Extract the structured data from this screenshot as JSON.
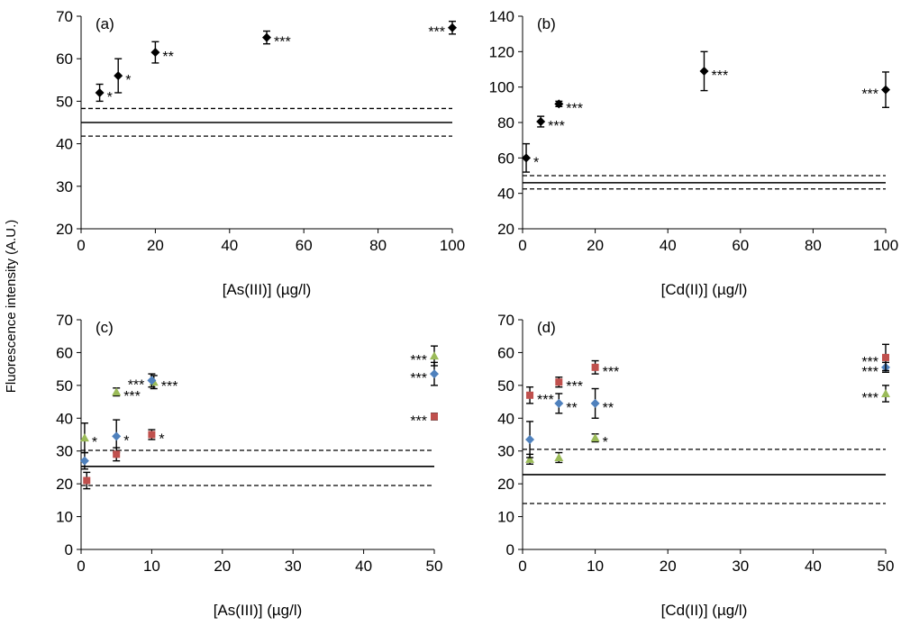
{
  "figure": {
    "ylabel": "Fluorescence intensity (A.U.)"
  },
  "chart_data": [
    {
      "id": "a",
      "type": "scatter",
      "panel_label": "(a)",
      "xlabel": "[As(III)] (µg/l)",
      "xlim": [
        0,
        100
      ],
      "xticks": [
        0,
        20,
        40,
        60,
        80,
        100
      ],
      "ylim": [
        20,
        70
      ],
      "yticks": [
        20,
        30,
        40,
        50,
        60,
        70
      ],
      "reference_lines": {
        "mean": 45,
        "lower": 41.8,
        "upper": 48.3
      },
      "series": [
        {
          "name": "series-1",
          "color": "#000000",
          "marker": "diamond",
          "points": [
            {
              "x": 5,
              "y": 52,
              "err": 2,
              "sig": "*",
              "sig_side": "right"
            },
            {
              "x": 10,
              "y": 56,
              "err": 4,
              "sig": "*",
              "sig_side": "right"
            },
            {
              "x": 20,
              "y": 61.5,
              "err": 2.5,
              "sig": "**",
              "sig_side": "right"
            },
            {
              "x": 50,
              "y": 65,
              "err": 1.5,
              "sig": "***",
              "sig_side": "right"
            },
            {
              "x": 100,
              "y": 67.3,
              "err": 1.5,
              "sig": "***",
              "sig_side": "left"
            }
          ]
        }
      ]
    },
    {
      "id": "b",
      "type": "scatter",
      "panel_label": "(b)",
      "xlabel": "[Cd(II)] (µg/l)",
      "xlim": [
        0,
        100
      ],
      "xticks": [
        0,
        20,
        40,
        60,
        80,
        100
      ],
      "ylim": [
        20,
        140
      ],
      "yticks": [
        20,
        40,
        60,
        80,
        100,
        120,
        140
      ],
      "reference_lines": {
        "mean": 46,
        "lower": 42.5,
        "upper": 50
      },
      "series": [
        {
          "name": "series-1",
          "color": "#000000",
          "marker": "diamond",
          "points": [
            {
              "x": 1,
              "y": 60,
              "err": 8,
              "sig": "*",
              "sig_side": "right"
            },
            {
              "x": 5,
              "y": 80.5,
              "err": 3,
              "sig": "***",
              "sig_side": "right"
            },
            {
              "x": 10,
              "y": 90.5,
              "err": 1.5,
              "sig": "***",
              "sig_side": "right"
            },
            {
              "x": 50,
              "y": 109,
              "err": 11,
              "sig": "***",
              "sig_side": "right"
            },
            {
              "x": 100,
              "y": 98.5,
              "err": 10,
              "sig": "***",
              "sig_side": "left"
            }
          ]
        }
      ]
    },
    {
      "id": "c",
      "type": "scatter",
      "panel_label": "(c)",
      "xlabel": "[As(III)] (µg/l)",
      "xlim": [
        0,
        50
      ],
      "xticks": [
        0,
        10,
        20,
        30,
        40,
        50
      ],
      "ylim": [
        0,
        70
      ],
      "yticks": [
        0,
        10,
        20,
        30,
        40,
        50,
        60,
        70
      ],
      "reference_lines": {
        "mean": 25.3,
        "lower": 19.5,
        "upper": 30.2
      },
      "series": [
        {
          "name": "green",
          "color": "#9BBB59",
          "marker": "triangle",
          "points": [
            {
              "x": 0.5,
              "y": 34,
              "err": 4.5,
              "sig": "*",
              "sig_side": "right"
            },
            {
              "x": 5,
              "y": 48,
              "err": 1.2,
              "sig": "***",
              "sig_side": "right"
            },
            {
              "x": 10.3,
              "y": 51,
              "err": 2,
              "sig": "***",
              "sig_side": "right"
            },
            {
              "x": 50,
              "y": 59,
              "err": 3,
              "sig": "***",
              "sig_side": "left"
            }
          ]
        },
        {
          "name": "blue",
          "color": "#4F81BD",
          "marker": "diamond",
          "points": [
            {
              "x": 0.5,
              "y": 27,
              "err": 2.5,
              "sig": "",
              "sig_side": "right"
            },
            {
              "x": 5,
              "y": 34.5,
              "err": 5,
              "sig": "*",
              "sig_side": "right"
            },
            {
              "x": 10,
              "y": 51.5,
              "err": 2,
              "sig": "***",
              "sig_side": "left"
            },
            {
              "x": 50,
              "y": 53.5,
              "err": 3.5,
              "sig": "***",
              "sig_side": "left"
            }
          ]
        },
        {
          "name": "red",
          "color": "#C0504D",
          "marker": "square",
          "points": [
            {
              "x": 0.8,
              "y": 21,
              "err": 2.5,
              "sig": "",
              "sig_side": "right"
            },
            {
              "x": 5,
              "y": 29,
              "err": 2,
              "sig": "",
              "sig_side": "right"
            },
            {
              "x": 10,
              "y": 35,
              "err": 1.5,
              "sig": "*",
              "sig_side": "right"
            },
            {
              "x": 50,
              "y": 40.5,
              "err": 1,
              "sig": "***",
              "sig_side": "left"
            }
          ]
        }
      ]
    },
    {
      "id": "d",
      "type": "scatter",
      "panel_label": "(d)",
      "xlabel": "[Cd(II)] (µg/l)",
      "xlim": [
        0,
        50
      ],
      "xticks": [
        0,
        10,
        20,
        30,
        40,
        50
      ],
      "ylim": [
        0,
        70
      ],
      "yticks": [
        0,
        10,
        20,
        30,
        40,
        50,
        60,
        70
      ],
      "reference_lines": {
        "mean": 22.8,
        "lower": 14,
        "upper": 30.5
      },
      "series": [
        {
          "name": "green",
          "color": "#9BBB59",
          "marker": "triangle",
          "points": [
            {
              "x": 1,
              "y": 27.5,
              "err": 1.5,
              "sig": "",
              "sig_side": "right"
            },
            {
              "x": 5,
              "y": 28,
              "err": 1.5,
              "sig": "",
              "sig_side": "right"
            },
            {
              "x": 10,
              "y": 34,
              "err": 1.2,
              "sig": "*",
              "sig_side": "right"
            },
            {
              "x": 50,
              "y": 47.5,
              "err": 2.5,
              "sig": "***",
              "sig_side": "left"
            }
          ]
        },
        {
          "name": "blue",
          "color": "#4F81BD",
          "marker": "diamond",
          "points": [
            {
              "x": 1,
              "y": 33.5,
              "err": 5.5,
              "sig": "",
              "sig_side": "right"
            },
            {
              "x": 5,
              "y": 44.5,
              "err": 3,
              "sig": "**",
              "sig_side": "right"
            },
            {
              "x": 10,
              "y": 44.5,
              "err": 4.5,
              "sig": "**",
              "sig_side": "right"
            },
            {
              "x": 50,
              "y": 55.5,
              "err": 1.5,
              "sig": "***",
              "sig_side": "left"
            }
          ]
        },
        {
          "name": "red",
          "color": "#C0504D",
          "marker": "square",
          "points": [
            {
              "x": 1,
              "y": 47,
              "err": 2.5,
              "sig": "***",
              "sig_side": "right"
            },
            {
              "x": 5,
              "y": 51,
              "err": 1.5,
              "sig": "***",
              "sig_side": "right"
            },
            {
              "x": 10,
              "y": 55.5,
              "err": 2,
              "sig": "***",
              "sig_side": "right"
            },
            {
              "x": 50,
              "y": 58.5,
              "err": 4,
              "sig": "***",
              "sig_side": "left"
            }
          ]
        }
      ]
    }
  ]
}
